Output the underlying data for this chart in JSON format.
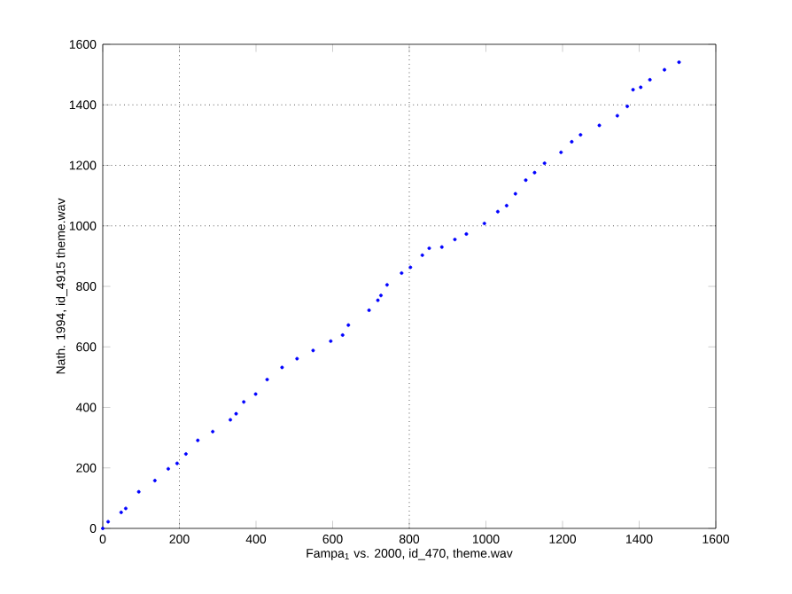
{
  "chart_data": {
    "type": "scatter",
    "xlabel": "Fampa$_{1}$ vs. 2000, id_470, theme.wav",
    "ylabel": "Nath. 1994, id_4915 theme.wav",
    "xlim": [
      0,
      1600
    ],
    "ylim": [
      0,
      1600
    ],
    "xticks": [
      0,
      200,
      400,
      600,
      800,
      1000,
      1200,
      1400,
      1600
    ],
    "yticks": [
      0,
      200,
      400,
      600,
      800,
      1000,
      1200,
      1400,
      1600
    ],
    "grid": false,
    "ref_lines": [
      {
        "axis": "x",
        "value": 200,
        "color": "#000000",
        "line_style": "dotted"
      },
      {
        "axis": "x",
        "value": 800,
        "color": "#000000",
        "line_style": "dotted"
      },
      {
        "axis": "y",
        "value": 1000,
        "color": "#000000",
        "line_style": "dotted"
      },
      {
        "axis": "y",
        "value": 1200,
        "color": "#000000",
        "line_style": "dotted"
      },
      {
        "axis": "y",
        "value": 1400,
        "color": "#000000",
        "line_style": "dotted"
      }
    ],
    "series": [
      {
        "color": "#0000ff",
        "x": [
          0,
          14,
          48,
          60,
          94,
          136,
          171,
          194,
          217,
          248,
          287,
          333,
          348,
          368,
          399,
          429,
          468,
          507,
          549,
          595,
          626,
          641,
          695,
          718,
          726,
          742,
          780,
          803,
          834,
          852,
          885,
          919,
          949,
          996,
          1031,
          1054,
          1077,
          1104,
          1127,
          1153,
          1196,
          1224,
          1247,
          1296,
          1343,
          1369,
          1384,
          1404,
          1428,
          1466,
          1504
        ],
        "values": [
          0,
          22,
          53,
          66,
          121,
          158,
          197,
          215,
          246,
          291,
          320,
          359,
          379,
          418,
          444,
          492,
          532,
          561,
          588,
          619,
          639,
          672,
          721,
          754,
          770,
          805,
          844,
          863,
          903,
          926,
          930,
          955,
          973,
          1008,
          1047,
          1067,
          1106,
          1151,
          1176,
          1207,
          1243,
          1278,
          1301,
          1332,
          1364,
          1395,
          1450,
          1458,
          1483,
          1516,
          1541
        ]
      }
    ]
  }
}
